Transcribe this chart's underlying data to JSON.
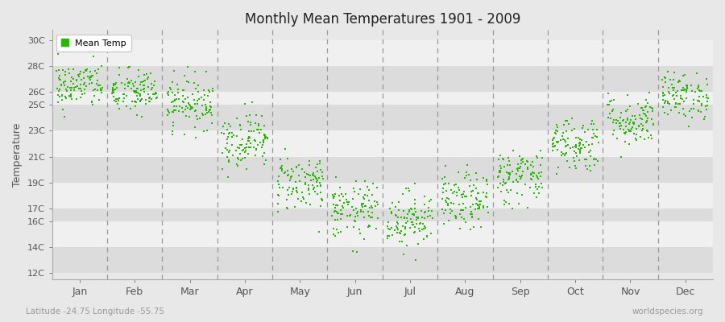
{
  "title": "Monthly Mean Temperatures 1901 - 2009",
  "ylabel": "Temperature",
  "xlabel_bottom": "Latitude -24.75 Longitude -55.75",
  "watermark": "worldspecies.org",
  "dot_color": "#22bb00",
  "dot_size": 3,
  "months": [
    "Jan",
    "Feb",
    "Mar",
    "Apr",
    "May",
    "Jun",
    "Jul",
    "Aug",
    "Sep",
    "Oct",
    "Nov",
    "Dec"
  ],
  "yticks": [
    12,
    14,
    16,
    17,
    19,
    21,
    23,
    25,
    26,
    28,
    30
  ],
  "ylim": [
    11.5,
    30.8
  ],
  "bg_color": "#e8e8e8",
  "band_white": "#f0f0f0",
  "band_gray": "#dcdcdc",
  "n_years": 109,
  "seed": 42,
  "mean_temps": [
    26.5,
    26.0,
    25.2,
    22.3,
    19.0,
    16.8,
    16.2,
    17.5,
    19.5,
    22.0,
    23.8,
    25.7
  ],
  "std_temps": [
    0.9,
    0.9,
    1.0,
    1.1,
    1.1,
    1.1,
    1.1,
    1.1,
    1.1,
    1.1,
    1.0,
    0.9
  ]
}
